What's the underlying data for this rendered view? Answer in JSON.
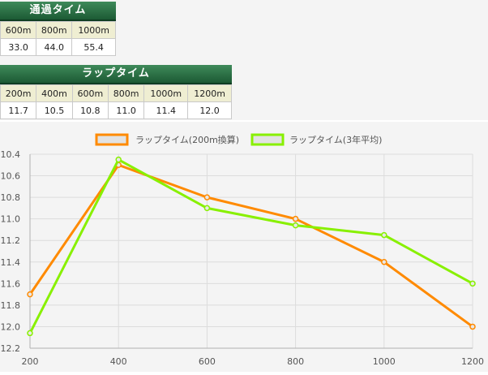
{
  "passing": {
    "title": "通過タイム",
    "headers": [
      "600m",
      "800m",
      "1000m"
    ],
    "values": [
      "33.0",
      "44.0",
      "55.4"
    ]
  },
  "laps": {
    "title": "ラップタイム",
    "headers": [
      "200m",
      "400m",
      "600m",
      "800m",
      "1000m",
      "1200m"
    ],
    "values": [
      "11.7",
      "10.5",
      "10.8",
      "11.0",
      "11.4",
      "12.0"
    ]
  },
  "chart_data": {
    "type": "line",
    "x": [
      200,
      400,
      600,
      800,
      1000,
      1200
    ],
    "x_ticks": [
      "200",
      "400",
      "600",
      "800",
      "1000",
      "1200"
    ],
    "y_ticks": [
      "10.4",
      "10.6",
      "10.8",
      "11.0",
      "11.2",
      "11.4",
      "11.6",
      "11.8",
      "12.0",
      "12.2"
    ],
    "ylim": [
      10.4,
      12.2
    ],
    "y_reversed": true,
    "grid": true,
    "legend": "top",
    "series": [
      {
        "name": "ラップタイム(200m換算)",
        "color": "#ff8a00",
        "values": [
          11.7,
          10.5,
          10.8,
          11.0,
          11.4,
          12.0
        ]
      },
      {
        "name": "ラップタイム(3年平均)",
        "color": "#88f000",
        "values": [
          12.06,
          10.45,
          10.9,
          11.06,
          11.15,
          11.6
        ]
      }
    ]
  }
}
